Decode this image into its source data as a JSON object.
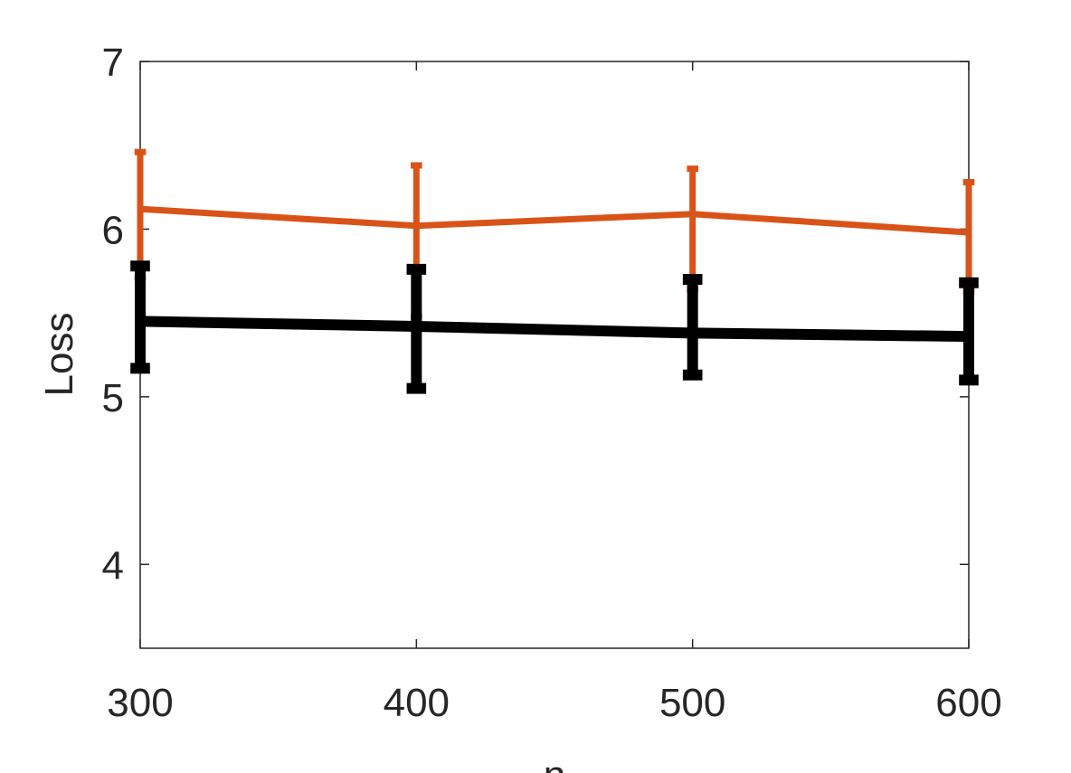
{
  "chart_data": {
    "type": "line",
    "x": [
      300,
      400,
      500,
      600
    ],
    "xlabel": "n",
    "ylabel": "Loss",
    "xlim": [
      300,
      600
    ],
    "xticks": [
      300,
      400,
      500,
      600
    ],
    "ylim": [
      3.5,
      7
    ],
    "yticks": [
      4,
      5,
      6,
      7
    ],
    "series": [
      {
        "color": "#d95319",
        "values": [
          6.12,
          6.02,
          6.09,
          5.98
        ],
        "err_plus": [
          0.34,
          0.36,
          0.27,
          0.3
        ],
        "err_minus": [
          0.41,
          0.54,
          0.45,
          0.35
        ],
        "width": 7
      },
      {
        "color": "#000000",
        "values": [
          5.45,
          5.42,
          5.38,
          5.36
        ],
        "err_plus": [
          0.33,
          0.34,
          0.32,
          0.32
        ],
        "err_minus": [
          0.28,
          0.37,
          0.25,
          0.26
        ],
        "width": 12
      }
    ]
  }
}
